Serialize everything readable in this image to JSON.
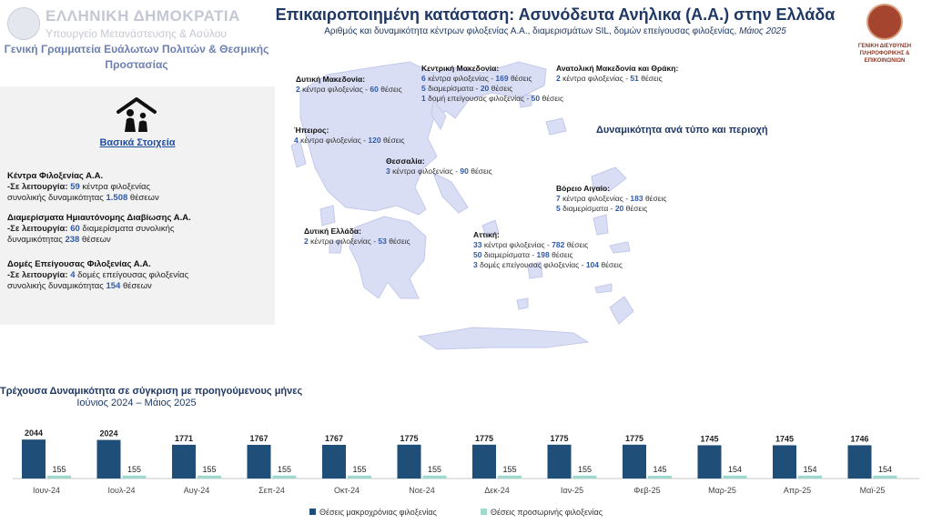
{
  "header": {
    "logo_line1": "ΕΛΛΗΝΙΚΗ ΔΗΜΟΚΡΑΤΙΑ",
    "logo_line2": "Υπουργείο Μετανάστευσης & Ασύλου",
    "ministry": "Γενική Γραμματεία Ευάλωτων Πολιτών & Θεσμικής Προστασίας",
    "title": "Επικαιροποιημένη κατάσταση: Ασυνόδευτα Ανήλικα (Α.Α.) στην Ελλάδα",
    "subtitle": "Αριθμός και δυναμικότητα κέντρων φιλοξενίας Α.Α., διαμερισμάτων SIL, δομών επείγουσας φιλοξενίας,",
    "subtitle_date": "Μάιος 2025",
    "gd_logo_line1": "ΓΕΝΙΚΗ ΔΙΕΥΘΥΝΣΗ",
    "gd_logo_line2": "ΠΛΗΡΟΦΟΡΙΚΗΣ & ΕΠΙΚΟΙΝΩΝΙΩΝ"
  },
  "basics": {
    "heading": "Βασικά Στοιχεία",
    "centers": {
      "title": "Κέντρα Φιλοξενίας Α.Α.",
      "label": "-Σε λειτουργία:",
      "count": "59",
      "text1": "κέντρα φιλοξενίας",
      "text2": "συνολικής δυναμικότητας",
      "capacity": "1.508",
      "text3": "θέσεων"
    },
    "apartments": {
      "title": "Διαμερίσματα Ημιαυτόνομης Διαβίωσης Α.Α.",
      "label": "-Σε λειτουργία:",
      "count": "60",
      "text1": "διαμερίσματα συνολικής",
      "text2": "δυναμικότητας",
      "capacity": "238",
      "text3": "θέσεων"
    },
    "emergency": {
      "title": "Δομές Επείγουσας Φιλοξενίας Α.Α.",
      "label": "-Σε λειτουργία:",
      "count": "4",
      "text1": "δομές επείγουσας φιλοξενίας",
      "text2": "συνολικής δυναμικότητας",
      "capacity": "154",
      "text3": "θέσεων"
    }
  },
  "map_caption": "Δυναμικότητα ανά τύπο και περιοχή",
  "regions": [
    {
      "name": "Δυτική Μακεδονία:",
      "lines": [
        {
          "count": "2",
          "kind": "κέντρα φιλοξενίας",
          "places": "60",
          "unit": "θέσεις"
        }
      ]
    },
    {
      "name": "Κεντρική Μακεδονία:",
      "lines": [
        {
          "count": "6",
          "kind": "κέντρα φιλοξενίας",
          "places": "169",
          "unit": "θέσεις"
        },
        {
          "count": "5",
          "kind": "διαμερίσματα",
          "places": "20",
          "unit": "θέσεις"
        },
        {
          "count": "1",
          "kind": "δομή επείγουσας φιλοξενίας",
          "places": "50",
          "unit": "θέσεις"
        }
      ]
    },
    {
      "name": "Ανατολική Μακεδονία και Θράκη:",
      "lines": [
        {
          "count": "2",
          "kind": "κέντρα φιλοξενίας",
          "places": "51",
          "unit": "θέσεις"
        }
      ]
    },
    {
      "name": "Ήπειρος:",
      "lines": [
        {
          "count": "4",
          "kind": "κέντρα φιλοξενίας",
          "places": "120",
          "unit": "θέσεις"
        }
      ]
    },
    {
      "name": "Θεσσαλία:",
      "lines": [
        {
          "count": "3",
          "kind": "κέντρα φιλοξενίας",
          "places": "90",
          "unit": "θέσεις"
        }
      ]
    },
    {
      "name": "Βόρειο Αιγαίο:",
      "lines": [
        {
          "count": "7",
          "kind": "κέντρα φιλοξενίας",
          "places": "183",
          "unit": "θέσεις"
        },
        {
          "count": "5",
          "kind": "διαμερίσματα",
          "places": "20",
          "unit": "θέσεις"
        }
      ]
    },
    {
      "name": "Δυτική Ελλάδα:",
      "lines": [
        {
          "count": "2",
          "kind": "κέντρα φιλοξενίας",
          "places": "53",
          "unit": "θέσεις"
        }
      ]
    },
    {
      "name": "Αττική:",
      "lines": [
        {
          "count": "33",
          "kind": "κέντρα φιλοξενίας",
          "places": "782",
          "unit": "θέσεις"
        },
        {
          "count": "50",
          "kind": "διαμερίσματα",
          "places": "198",
          "unit": "θέσεις"
        },
        {
          "count": "3",
          "kind": "δομές επείγουσας φιλοξενίας",
          "places": "104",
          "unit": "θέσεις"
        }
      ]
    }
  ],
  "colors": {
    "long_term": "#1f4e79",
    "temporary": "#9fd8cc",
    "map_fill": "#d9def5"
  },
  "chart_data": {
    "type": "bar",
    "title": "Τρέχουσα Δυναμικότητα σε σύγκριση με προηγούμενους μήνες",
    "subtitle": "Ιούνιος 2024 – Μάιος 2025",
    "categories": [
      "Ιουν-24",
      "Ιουλ-24",
      "Αυγ-24",
      "Σεπ-24",
      "Οκτ-24",
      "Νοε-24",
      "Δεκ-24",
      "Ιαν-25",
      "Φεβ-25",
      "Μαρ-25",
      "Απρ-25",
      "Μαϊ-25"
    ],
    "series": [
      {
        "name": "Θέσεις μακροχρόνιας φιλοξενίας",
        "values": [
          2044,
          2024,
          1771,
          1767,
          1767,
          1775,
          1775,
          1775,
          1775,
          1745,
          1745,
          1746
        ]
      },
      {
        "name": "Θέσεις προσωρινής φιλοξενίας",
        "values": [
          155,
          155,
          155,
          155,
          155,
          155,
          155,
          155,
          145,
          154,
          154,
          154
        ]
      }
    ],
    "ylim": [
      0,
      2100
    ],
    "legend": "bottom",
    "grid": false
  }
}
